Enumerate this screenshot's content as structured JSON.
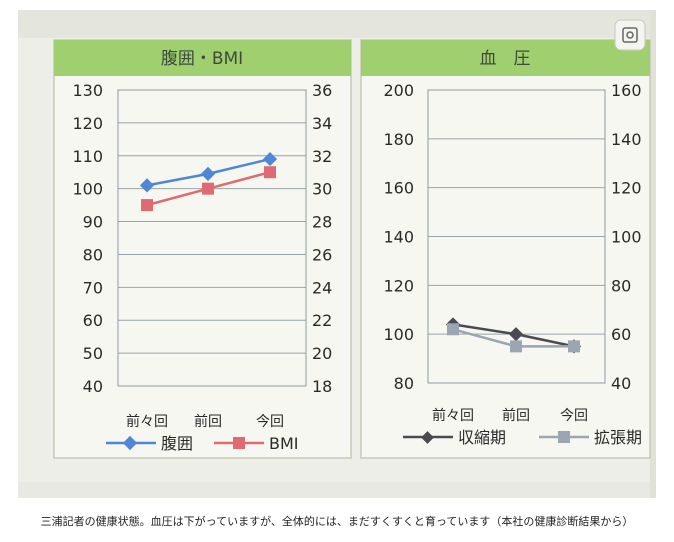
{
  "caption": "三浦記者の健康状態。血圧は下がっていますが、全体的には、まだすくすくと育っています（本社の健康診断結果から）",
  "chart_data": [
    {
      "type": "line",
      "title": "腹囲・BMI",
      "categories": [
        "前々回",
        "前回",
        "今回"
      ],
      "y_left": {
        "lim": [
          40,
          130
        ],
        "ticks": [
          "130",
          "120",
          "110",
          "100",
          "90",
          "80",
          "70",
          "60",
          "50",
          "40"
        ]
      },
      "y_right": {
        "lim": [
          18,
          36
        ],
        "ticks": [
          "36",
          "34",
          "32",
          "30",
          "28",
          "26",
          "24",
          "22",
          "20",
          "18"
        ]
      },
      "series": [
        {
          "name": "腹囲",
          "axis": "left",
          "color": "#4f87d6",
          "marker": "diamond",
          "values": [
            101,
            104.5,
            109
          ]
        },
        {
          "name": "BMI",
          "axis": "right",
          "color": "#e06a73",
          "marker": "square",
          "values": [
            29,
            30,
            31
          ]
        }
      ],
      "grid": true,
      "legend": "bottom"
    },
    {
      "type": "line",
      "title": "血　圧",
      "categories": [
        "前々回",
        "前回",
        "今回"
      ],
      "y_left": {
        "lim": [
          80,
          200
        ],
        "ticks": [
          "200",
          "180",
          "160",
          "140",
          "120",
          "100",
          "80"
        ]
      },
      "y_right": {
        "lim": [
          40,
          160
        ],
        "ticks": [
          "160",
          "140",
          "120",
          "100",
          "80",
          "60",
          "40"
        ]
      },
      "series": [
        {
          "name": "収縮期",
          "axis": "left",
          "color": "#4a4a52",
          "marker": "diamond",
          "values": [
            104,
            100,
            95
          ]
        },
        {
          "name": "拡張期",
          "axis": "right",
          "color": "#9aa6b2",
          "marker": "square",
          "values": [
            62,
            55,
            55
          ]
        }
      ],
      "grid": true,
      "legend": "bottom"
    }
  ]
}
